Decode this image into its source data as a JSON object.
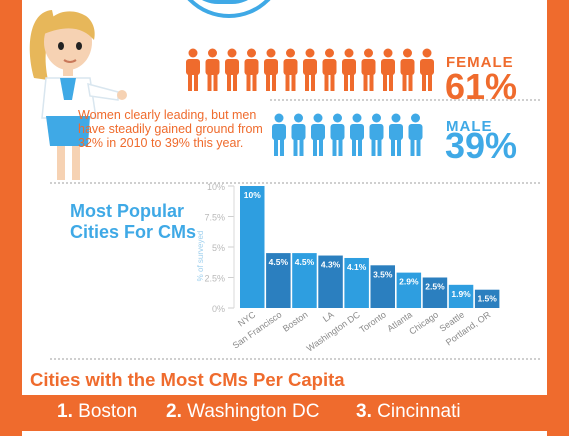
{
  "gender": {
    "female_label": "FEMALE",
    "female_pct": "61%",
    "male_label": "MALE",
    "male_pct": "39%",
    "female_color": "#ef6b2d",
    "male_color": "#3fa9e6"
  },
  "blurb": "Women clearly leading, but men have steadily gained ground from 32% in 2010 to 39% this year.",
  "cities_title": "Most Popular Cities For CMs",
  "chart_data": {
    "type": "bar",
    "title": "Most Popular Cities For CMs",
    "xlabel": "",
    "ylabel": "% of surveyed",
    "ylim": [
      0,
      10
    ],
    "yticks": [
      "0%",
      "2.5%",
      "5%",
      "7.5%",
      "10%"
    ],
    "categories": [
      "NYC",
      "San Francisco",
      "Boston",
      "LA",
      "Washington DC",
      "Toronto",
      "Atlanta",
      "Chicago",
      "Seattle",
      "Portland, OR"
    ],
    "values": [
      10,
      4.5,
      4.5,
      4.3,
      4.1,
      3.5,
      2.9,
      2.5,
      1.9,
      1.5
    ],
    "data_labels": [
      "10%",
      "4.5%",
      "4.5%",
      "4.3%",
      "4.1%",
      "3.5%",
      "2.9%",
      "2.5%",
      "1.9%",
      "1.5%"
    ],
    "colors": [
      "#2e9ee0",
      "#2b7fbf"
    ]
  },
  "per_capita": {
    "title": "Cities with the Most CMs Per Capita",
    "ranks": [
      {
        "num": "1.",
        "city": "Boston"
      },
      {
        "num": "2.",
        "city": "Washington DC"
      },
      {
        "num": "3.",
        "city": "Cincinnati"
      }
    ]
  }
}
